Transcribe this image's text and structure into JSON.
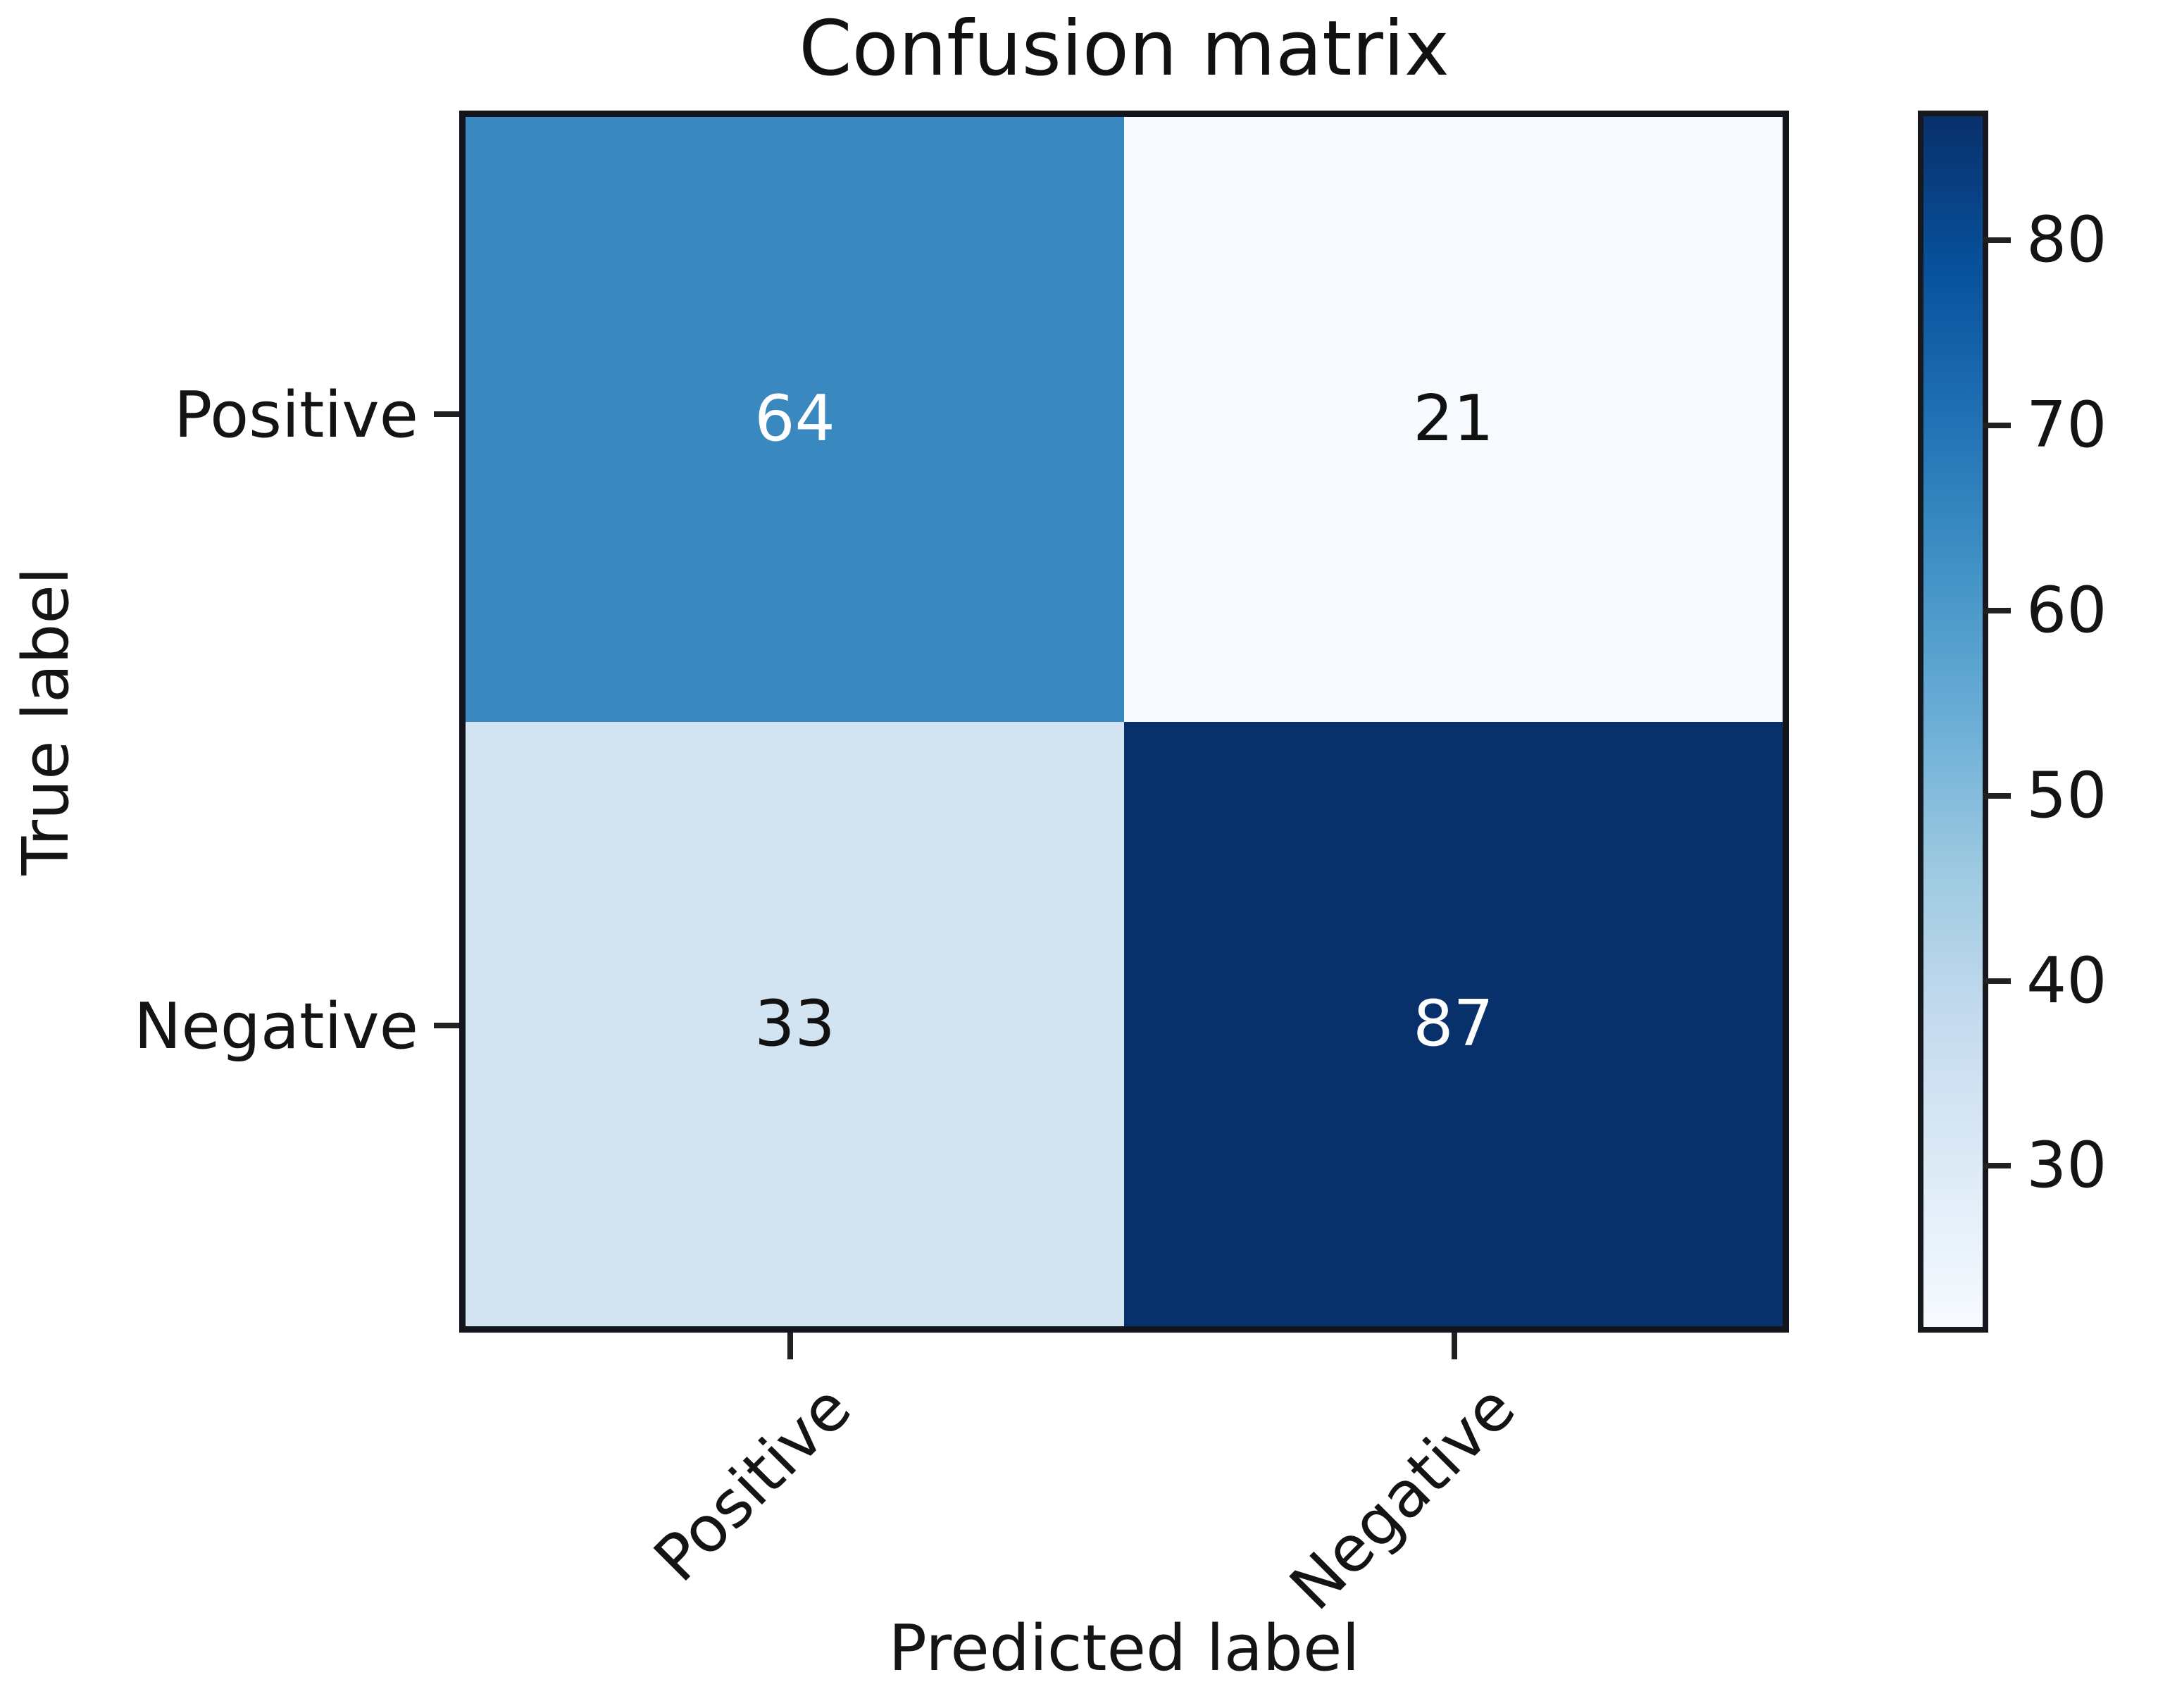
{
  "chart_data": {
    "type": "heatmap",
    "title": "Confusion matrix",
    "xlabel": "Predicted label",
    "ylabel": "True label",
    "x_categories": [
      "Positive",
      "Negative"
    ],
    "y_categories": [
      "Positive",
      "Negative"
    ],
    "matrix": [
      [
        64,
        21
      ],
      [
        33,
        87
      ]
    ],
    "cell_colors": [
      [
        "#3a88c0",
        "#f7fbff"
      ],
      [
        "#d2e3f2",
        "#08306b"
      ]
    ],
    "cell_text_colors": [
      [
        "#ffffff",
        "#111111"
      ],
      [
        "#111111",
        "#ffffff"
      ]
    ],
    "colormap_name": "Blues",
    "colorbar": {
      "vmin": 21,
      "vmax": 87,
      "ticks": [
        80,
        70,
        60,
        50,
        40,
        30
      ],
      "gradient_stops_bottom_to_top": [
        "#f7fbff",
        "#deebf7",
        "#c6dbef",
        "#9ecae1",
        "#6baed6",
        "#4292c6",
        "#2171b5",
        "#08519c",
        "#08306b"
      ]
    },
    "layout": {
      "grid": false,
      "legend": "colorbar-right",
      "x_tick_rotation_deg": 45,
      "figure_bg": "#ffffff",
      "spine_color": "#12161c",
      "tick_color": "#202020"
    }
  }
}
